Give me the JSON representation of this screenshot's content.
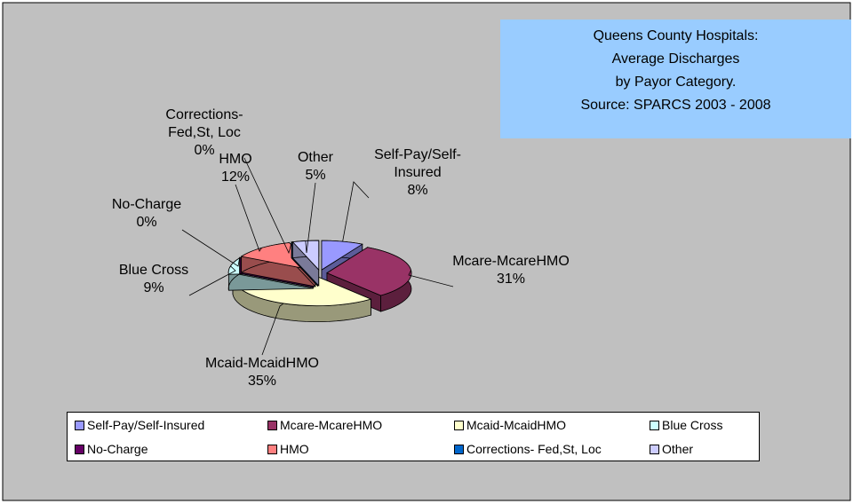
{
  "chart_data": {
    "type": "pie",
    "title_lines": [
      "Queens County Hospitals:",
      "Average Discharges",
      "by Payor Category.",
      "Source: SPARCS 2003 - 2008"
    ],
    "categories": [
      "Self-Pay/Self-Insured",
      "Mcare-McareHMO",
      "Mcaid-McaidHMO",
      "Blue Cross",
      "No-Charge",
      "HMO",
      "Corrections- Fed,St, Loc",
      "Other"
    ],
    "values": [
      8,
      31,
      35,
      9,
      0,
      12,
      0,
      5
    ],
    "value_labels": [
      "8%",
      "31%",
      "35%",
      "9%",
      "0%",
      "12%",
      "0%",
      "5%"
    ],
    "colors": [
      "#9999ff",
      "#993366",
      "#ffffcc",
      "#ccffff",
      "#660066",
      "#ff8080",
      "#0066cc",
      "#ccccff"
    ],
    "legend": "bottom"
  }
}
